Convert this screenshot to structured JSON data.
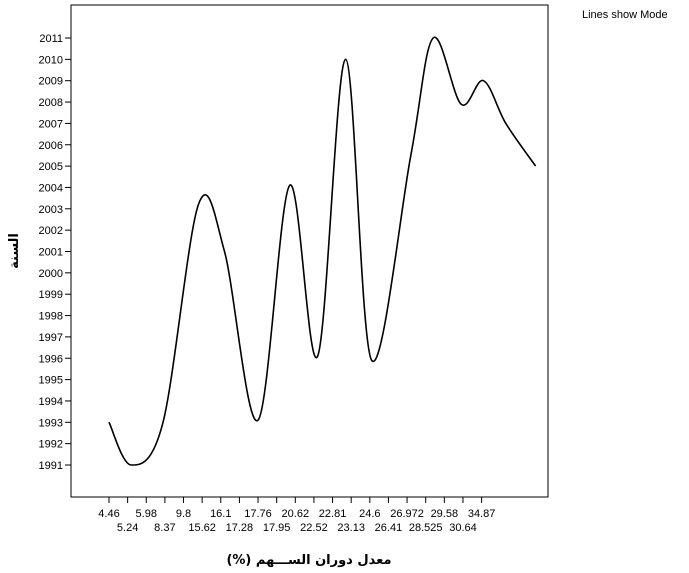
{
  "chart_data": {
    "type": "line",
    "note": "Lines show Mode",
    "xlabel": "معدل دوران الســـهم (%)",
    "ylabel": "السنة",
    "categories": [
      "4.46",
      "5.24",
      "5.98",
      "8.37",
      "9.8",
      "15.62",
      "16.1",
      "17.28",
      "17.76",
      "17.95",
      "20.62",
      "22.52",
      "22.81",
      "23.13",
      "24.6",
      "26.41",
      "26.972",
      "28.525",
      "29.58",
      "30.64",
      "34.87"
    ],
    "ylim": [
      1989.5,
      2012.5
    ],
    "yticks": [
      1991,
      1992,
      1993,
      1994,
      1995,
      1996,
      1997,
      1998,
      1999,
      2000,
      2001,
      2002,
      2003,
      2004,
      2005,
      2006,
      2007,
      2008,
      2009,
      2010,
      2011
    ],
    "points": [
      {
        "x": 0.0,
        "y": 1993
      },
      {
        "x": 1.2,
        "y": 1991
      },
      {
        "x": 2.9,
        "y": 1993
      },
      {
        "x": 4.8,
        "y": 2003.2
      },
      {
        "x": 6.2,
        "y": 2001
      },
      {
        "x": 8.0,
        "y": 1993.1
      },
      {
        "x": 9.7,
        "y": 2004.1
      },
      {
        "x": 11.2,
        "y": 1996.1
      },
      {
        "x": 12.7,
        "y": 2010
      },
      {
        "x": 14.1,
        "y": 1995.9
      },
      {
        "x": 16.2,
        "y": 2005.5
      },
      {
        "x": 17.4,
        "y": 2011
      },
      {
        "x": 18.9,
        "y": 2007.9
      },
      {
        "x": 20.1,
        "y": 2009
      },
      {
        "x": 21.3,
        "y": 2007
      },
      {
        "x": 22.9,
        "y": 2005
      }
    ],
    "grid": false
  }
}
